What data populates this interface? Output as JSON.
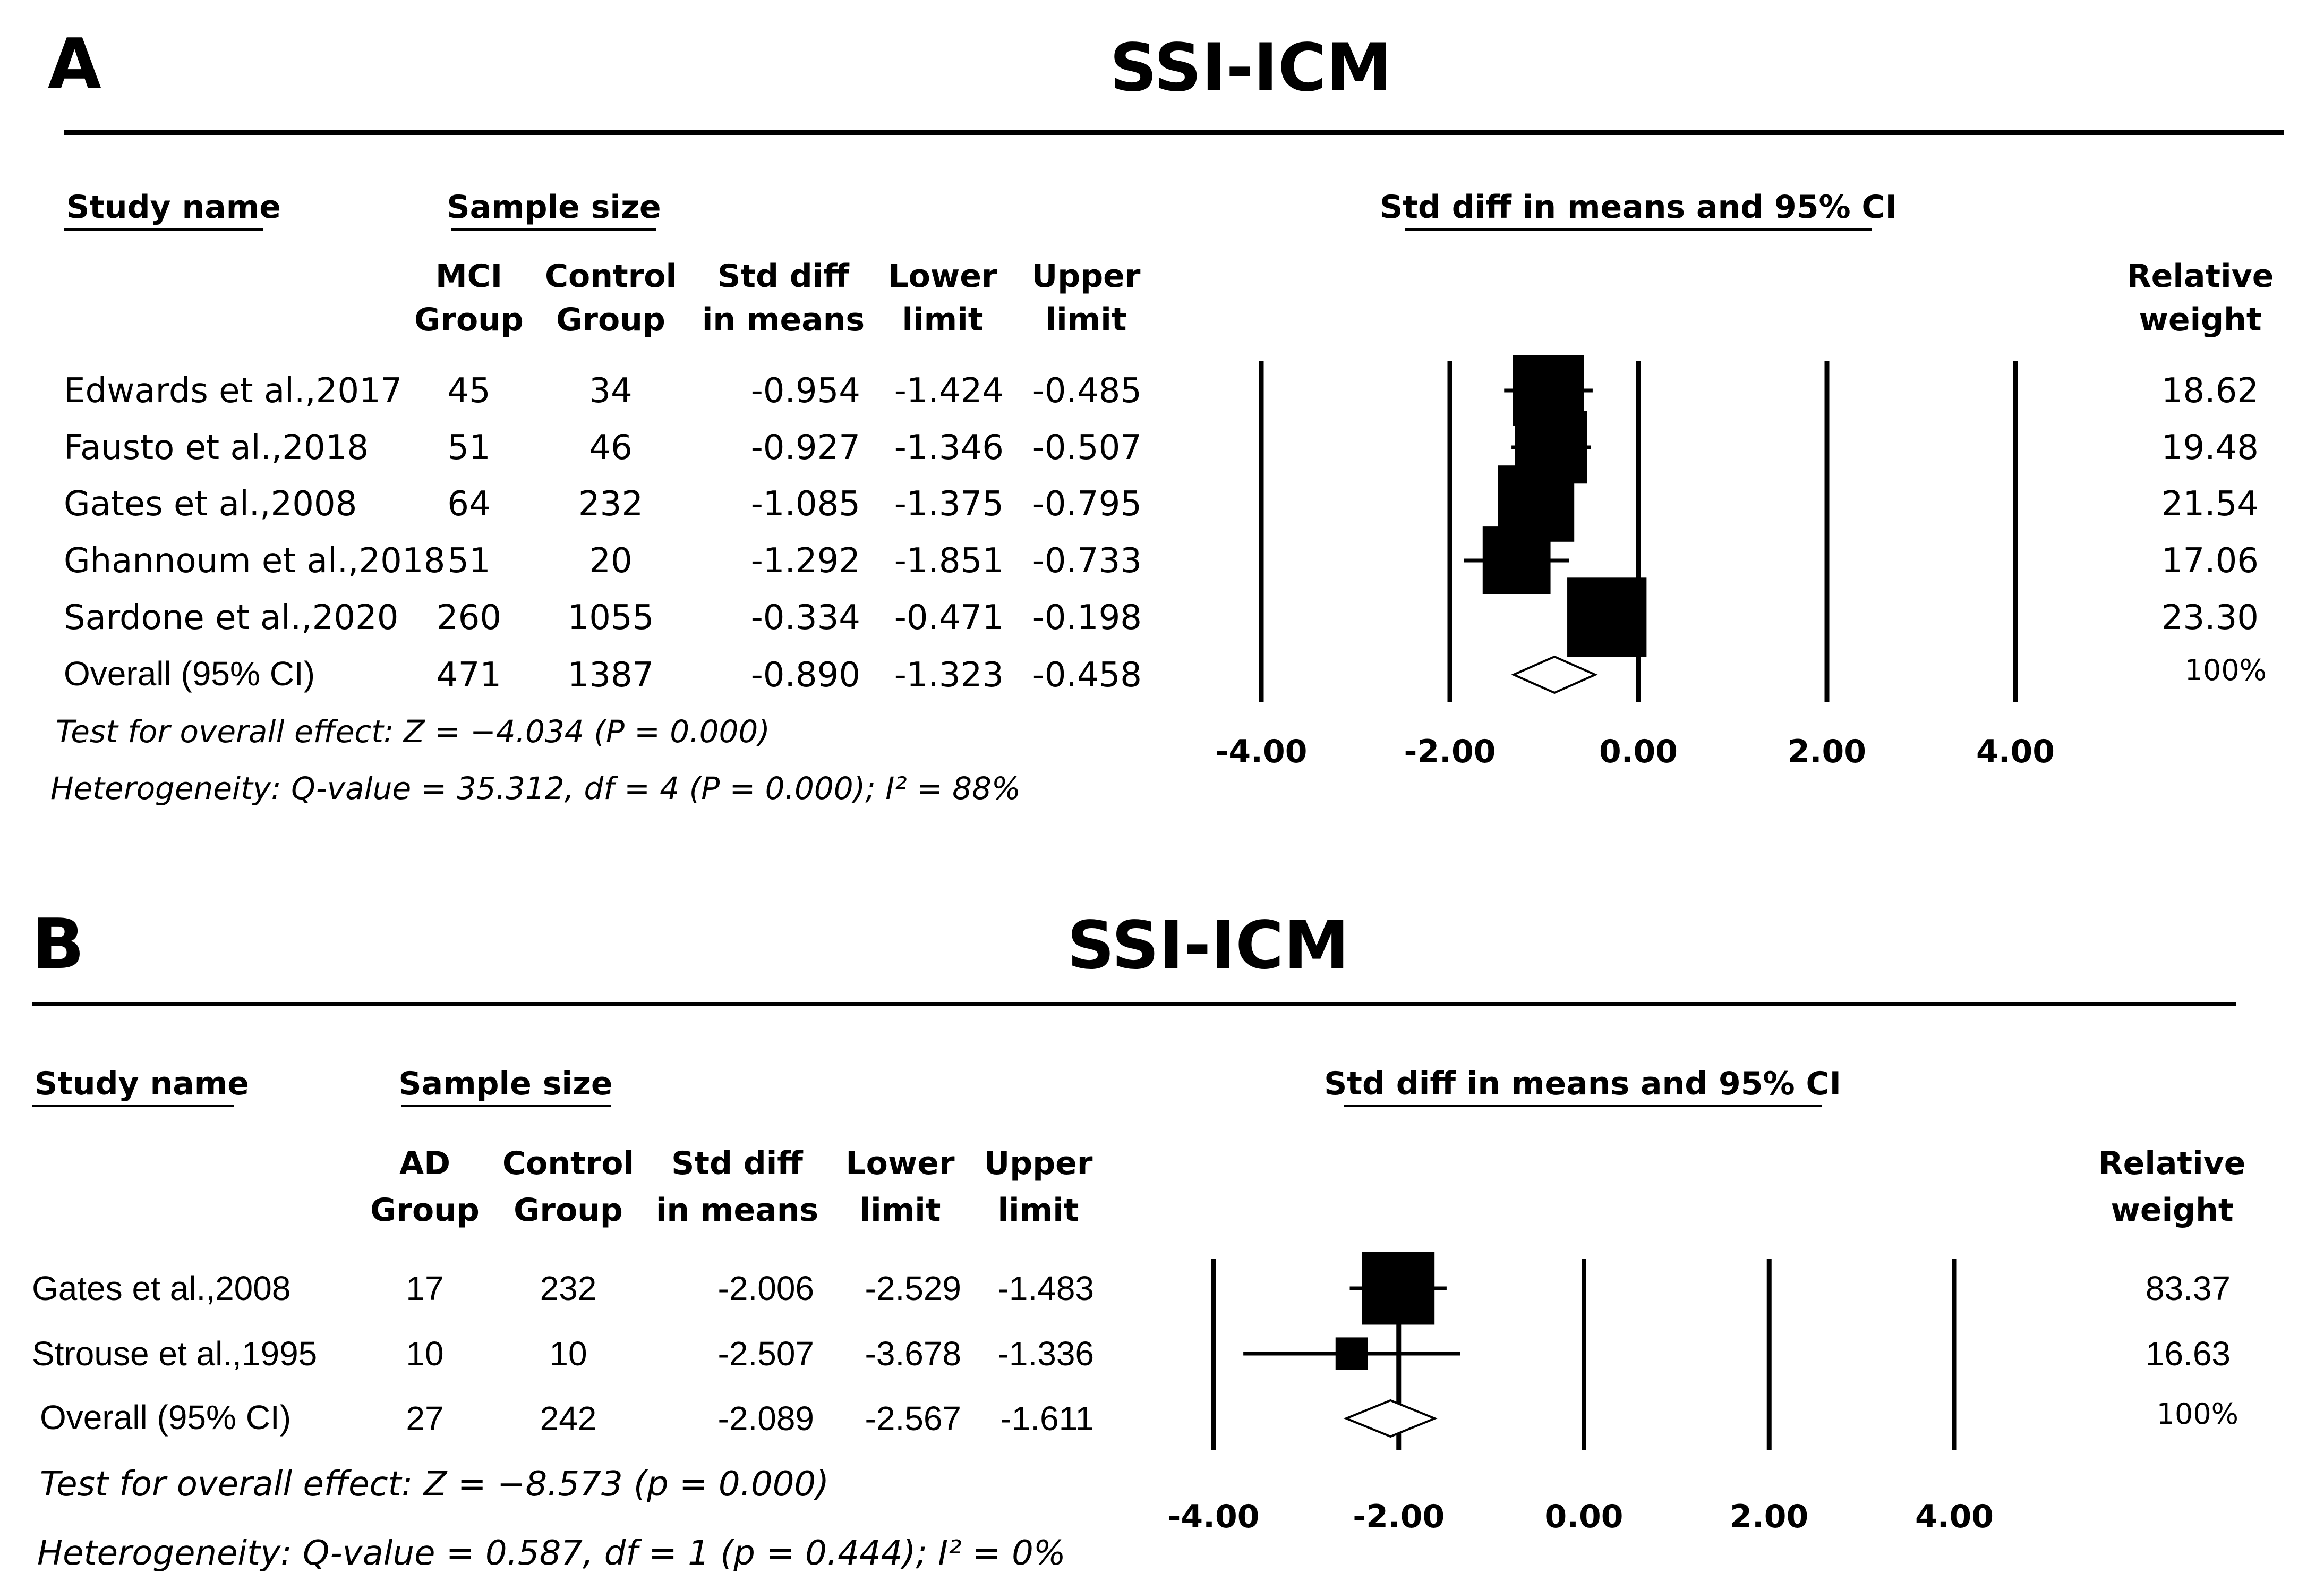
{
  "chart_data": [
    {
      "type": "forest",
      "panel": "A",
      "title": "SSI-ICM",
      "headers": {
        "study_name": "Study name",
        "sample_size": "Sample size",
        "plot_label": "Std diff in means and 95% CI",
        "group1": [
          "MCI",
          "Group"
        ],
        "group2": [
          "Control",
          "Group"
        ],
        "std_diff": [
          "Std diff",
          "in means"
        ],
        "lower": [
          "Lower",
          "limit"
        ],
        "upper": [
          "Upper",
          "limit"
        ],
        "weight": [
          "Relative",
          "weight"
        ]
      },
      "studies": [
        {
          "name": "Edwards et al.,2017",
          "n1": "45",
          "n2": "34",
          "smd": "-0.954",
          "lower": "-1.424",
          "upper": "-0.485",
          "weight": "18.62"
        },
        {
          "name": "Fausto et al.,2018",
          "n1": "51",
          "n2": "46",
          "smd": "-0.927",
          "lower": "-1.346",
          "upper": "-0.507",
          "weight": "19.48"
        },
        {
          "name": "Gates et al.,2008",
          "n1": "64",
          "n2": "232",
          "smd": "-1.085",
          "lower": "-1.375",
          "upper": "-0.795",
          "weight": "21.54"
        },
        {
          "name": "Ghannoum et al.,2018",
          "n1": "51",
          "n2": "20",
          "smd": "-1.292",
          "lower": "-1.851",
          "upper": "-0.733",
          "weight": "17.06"
        },
        {
          "name": "Sardone et al.,2020",
          "n1": "260",
          "n2": "1055",
          "smd": "-0.334",
          "lower": "-0.471",
          "upper": "-0.198",
          "weight": "23.30"
        }
      ],
      "overall": {
        "name": "Overall (95% CI)",
        "n1": "471",
        "n2": "1387",
        "smd": "-0.890",
        "lower": "-1.323",
        "upper": "-0.458",
        "weight": "100%"
      },
      "test_text": "Test for overall effect: Z = −4.034 (P = 0.000)",
      "heterogeneity_text": "Heterogeneity: Q-value = 35.312, df = 4 (P = 0.000); I² = 88%",
      "xlim": [
        -4,
        4
      ],
      "xticks": [
        -4,
        -2,
        0,
        2,
        4
      ],
      "xtick_labels": [
        "-4.00",
        "-2.00",
        "0.00",
        "2.00",
        "4.00"
      ]
    },
    {
      "type": "forest",
      "panel": "B",
      "title": "SSI-ICM",
      "headers": {
        "study_name": "Study name",
        "sample_size": "Sample size",
        "plot_label": "Std diff in means and 95% CI",
        "group1": [
          "AD",
          "Group"
        ],
        "group2": [
          "Control",
          "Group"
        ],
        "std_diff": [
          "Std diff",
          "in means"
        ],
        "lower": [
          "Lower",
          "limit"
        ],
        "upper": [
          "Upper",
          "limit"
        ],
        "weight": [
          "Relative",
          "weight"
        ]
      },
      "studies": [
        {
          "name": "Gates et al.,2008",
          "n1": "17",
          "n2": "232",
          "smd": "-2.006",
          "lower": "-2.529",
          "upper": "-1.483",
          "weight": "83.37"
        },
        {
          "name": "Strouse et al.,1995",
          "n1": "10",
          "n2": "10",
          "smd": "-2.507",
          "lower": "-3.678",
          "upper": "-1.336",
          "weight": "16.63"
        }
      ],
      "overall": {
        "name": "Overall (95% CI)",
        "n1": "27",
        "n2": "242",
        "smd": "-2.089",
        "lower": "-2.567",
        "upper": "-1.611",
        "weight": "100%"
      },
      "test_text": "Test for overall effect: Z = −8.573 (p = 0.000)",
      "heterogeneity_text": "Heterogeneity: Q-value = 0.587, df = 1 (p = 0.444); I² = 0%",
      "xlim": [
        -4,
        4
      ],
      "xticks": [
        -4,
        -2,
        0,
        2,
        4
      ],
      "xtick_labels": [
        "-4.00",
        "-2.00",
        "0.00",
        "2.00",
        "4.00"
      ]
    }
  ]
}
